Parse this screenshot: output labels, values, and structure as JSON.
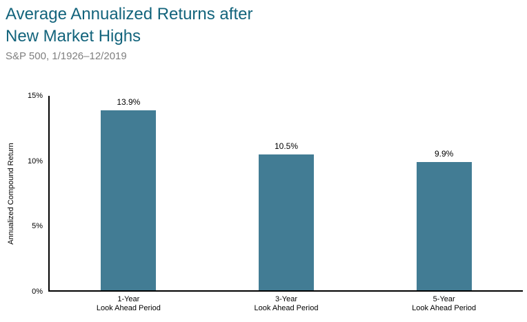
{
  "header": {
    "title": "Average Annualized Returns after New Market Highs",
    "subtitle": "S&P 500, 1/1926–12/2019"
  },
  "chart_data": {
    "type": "bar",
    "title": "Average Annualized Returns after New Market Highs",
    "subtitle": "S&P 500, 1/1926–12/2019",
    "categories": [
      "1-Year",
      "3-Year",
      "5-Year"
    ],
    "category_sublabel": "Look Ahead Period",
    "values": [
      13.9,
      10.5,
      9.9
    ],
    "value_labels": [
      "13.9%",
      "10.5%",
      "9.9%"
    ],
    "xlabel": "",
    "ylabel": "Annualized Compound Return",
    "ylim": [
      0,
      15
    ],
    "yticks": [
      0,
      5,
      10,
      15
    ],
    "ytick_labels": [
      "0%",
      "5%",
      "10%",
      "15%"
    ],
    "grid": false,
    "legend": false,
    "colors": {
      "bar": "#427C94",
      "title": "#13647C",
      "subtitle": "#7F7F7F",
      "axis": "#000000"
    }
  }
}
